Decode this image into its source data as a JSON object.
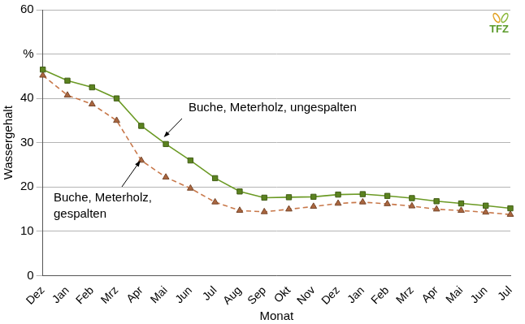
{
  "chart_data": {
    "type": "line",
    "x_label": "Monat",
    "y_label": "Wassergehalt",
    "categories": [
      "Dez",
      "Jan",
      "Feb",
      "Mrz",
      "Apr",
      "Mai",
      "Jun",
      "Jul",
      "Aug",
      "Sep",
      "Okt",
      "Nov",
      "Dez",
      "Jan",
      "Feb",
      "Mrz",
      "Apr",
      "Mai",
      "Jun",
      "Jul"
    ],
    "series": [
      {
        "name": "Buche, Meterholz, ungespalten",
        "color": "#6b9a24",
        "marker": "square",
        "line_style": "solid",
        "values": [
          46.5,
          44,
          42.5,
          40,
          33.8,
          29.7,
          26,
          22,
          19,
          17.6,
          17.7,
          17.8,
          18.3,
          18.4,
          18,
          17.5,
          16.8,
          16.3,
          15.8,
          15.2
        ]
      },
      {
        "name": "Buche, Meterholz, gespalten",
        "color": "#c8784a",
        "marker": "triangle",
        "line_style": "dashed",
        "values": [
          45.2,
          40.7,
          38.7,
          35,
          26,
          22.2,
          19.7,
          16.6,
          14.7,
          14.4,
          15,
          15.6,
          16.3,
          16.6,
          16.2,
          15.7,
          15,
          14.7,
          14.3,
          13.8
        ]
      }
    ],
    "ylim": [
      0,
      60
    ],
    "yticks": [
      0,
      10,
      20,
      30,
      40,
      {
        "value": 50,
        "label": "%"
      },
      60
    ],
    "grid": true,
    "annotations": [
      "TFZ"
    ]
  }
}
